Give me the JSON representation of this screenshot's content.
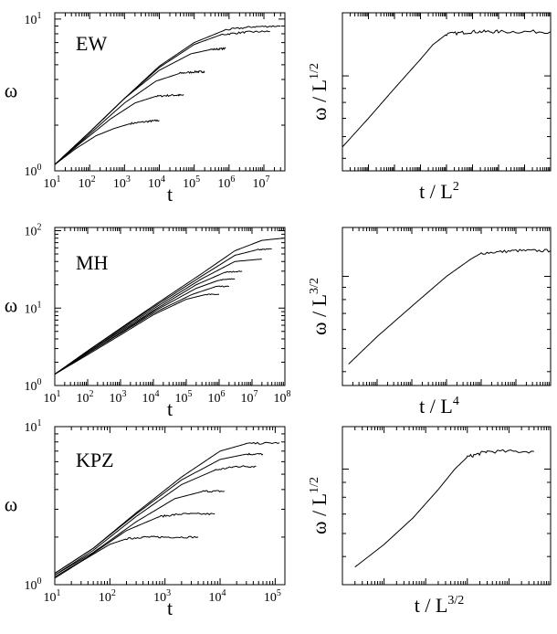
{
  "figure": {
    "rows": 3,
    "cols": 2
  },
  "chart_data": [
    {
      "id": "ew-left",
      "type": "line",
      "panel_label": "EW",
      "xlabel": "t",
      "ylabel": "ω",
      "xscale": "log",
      "yscale": "log",
      "xlim": [
        10,
        40000000
      ],
      "ylim": [
        1,
        11
      ],
      "xticks": [
        {
          "v": 10,
          "b": "10",
          "e": "1"
        },
        {
          "v": 100,
          "b": "10",
          "e": "2"
        },
        {
          "v": 1000,
          "b": "10",
          "e": "3"
        },
        {
          "v": 10000,
          "b": "10",
          "e": "4"
        },
        {
          "v": 100000,
          "b": "10",
          "e": "5"
        },
        {
          "v": 1000000,
          "b": "10",
          "e": "6"
        },
        {
          "v": 10000000,
          "b": "10",
          "e": "7"
        }
      ],
      "yticks": [
        {
          "v": 1,
          "b": "10",
          "e": "0"
        },
        {
          "v": 10,
          "b": "10",
          "e": "1"
        }
      ],
      "series": [
        {
          "x": [
            10,
            40,
            150,
            500,
            1500,
            5000,
            10000
          ],
          "y": [
            1.1,
            1.4,
            1.7,
            1.9,
            2.05,
            2.12,
            2.15
          ]
        },
        {
          "x": [
            10,
            60,
            400,
            2000,
            8000,
            25000,
            50000
          ],
          "y": [
            1.1,
            1.55,
            2.2,
            2.8,
            3.1,
            3.15,
            3.15
          ]
        },
        {
          "x": [
            10,
            100,
            1000,
            8000,
            40000,
            120000,
            200000
          ],
          "y": [
            1.1,
            1.75,
            2.8,
            3.9,
            4.4,
            4.5,
            4.5
          ]
        },
        {
          "x": [
            10,
            100,
            1000,
            10000,
            80000,
            300000,
            800000
          ],
          "y": [
            1.1,
            1.8,
            3.0,
            4.6,
            5.9,
            6.3,
            6.4
          ]
        },
        {
          "x": [
            10,
            100,
            1000,
            10000,
            100000,
            600000,
            3000000,
            15000000
          ],
          "y": [
            1.1,
            1.8,
            3.0,
            4.8,
            6.8,
            7.9,
            8.2,
            8.3
          ]
        },
        {
          "x": [
            10,
            100,
            1000,
            10000,
            100000,
            800000,
            5000000,
            30000000
          ],
          "y": [
            1.1,
            1.8,
            3.0,
            4.9,
            7.0,
            8.5,
            8.9,
            9.0
          ]
        }
      ]
    },
    {
      "id": "ew-right",
      "type": "line",
      "xlabel": {
        "base": "t / L",
        "sup": "2"
      },
      "ylabel": {
        "base": "ω / L",
        "sup": "1/2"
      },
      "xscale": "log",
      "yscale": "log",
      "xlim": [
        0.0001,
        10000
      ],
      "ylim": [
        0.45,
        1.7
      ],
      "series": [
        {
          "x": [
            0.0001,
            0.001,
            0.01,
            0.1,
            0.3,
            1,
            10,
            100,
            10000
          ],
          "y": [
            0.55,
            0.7,
            0.9,
            1.15,
            1.3,
            1.42,
            1.45,
            1.45,
            1.45
          ]
        }
      ]
    },
    {
      "id": "mh-left",
      "type": "line",
      "panel_label": "MH",
      "xlabel": "t",
      "ylabel": "ω",
      "xscale": "log",
      "yscale": "log",
      "xlim": [
        10,
        100000000
      ],
      "ylim": [
        1,
        110
      ],
      "xticks": [
        {
          "v": 10,
          "b": "10",
          "e": "1"
        },
        {
          "v": 100,
          "b": "10",
          "e": "2"
        },
        {
          "v": 1000,
          "b": "10",
          "e": "3"
        },
        {
          "v": 10000,
          "b": "10",
          "e": "4"
        },
        {
          "v": 100000,
          "b": "10",
          "e": "5"
        },
        {
          "v": 1000000,
          "b": "10",
          "e": "6"
        },
        {
          "v": 10000000,
          "b": "10",
          "e": "7"
        },
        {
          "v": 100000000,
          "b": "10",
          "e": "8"
        }
      ],
      "yticks": [
        {
          "v": 1,
          "b": "10",
          "e": "0"
        },
        {
          "v": 10,
          "b": "10",
          "e": "1"
        },
        {
          "v": 100,
          "b": "10",
          "e": "2"
        }
      ],
      "series": [
        {
          "x": [
            10,
            100,
            1000,
            10000,
            100000,
            400000,
            1000000
          ],
          "y": [
            1.4,
            2.5,
            4.5,
            8.2,
            13,
            15,
            15
          ]
        },
        {
          "x": [
            10,
            100,
            1000,
            10000,
            150000,
            800000,
            2000000
          ],
          "y": [
            1.4,
            2.6,
            4.7,
            8.6,
            15,
            19,
            19
          ]
        },
        {
          "x": [
            10,
            100,
            1000,
            10000,
            200000,
            1000000,
            3000000
          ],
          "y": [
            1.4,
            2.6,
            4.8,
            9.0,
            18,
            23,
            24
          ]
        },
        {
          "x": [
            10,
            100,
            1000,
            10000,
            200000,
            1500000,
            5000000
          ],
          "y": [
            1.4,
            2.7,
            5.0,
            9.3,
            20,
            29,
            30
          ]
        },
        {
          "x": [
            10,
            100,
            1000,
            10000,
            300000,
            3000000,
            20000000
          ],
          "y": [
            1.4,
            2.7,
            5.2,
            9.8,
            24,
            40,
            43
          ]
        },
        {
          "x": [
            10,
            100,
            1000,
            10000,
            300000,
            3000000,
            15000000,
            40000000
          ],
          "y": [
            1.4,
            2.8,
            5.4,
            10.3,
            26,
            48,
            57,
            58
          ]
        },
        {
          "x": [
            10,
            100,
            1000,
            10000,
            300000,
            3000000,
            20000000,
            90000000
          ],
          "y": [
            1.4,
            2.8,
            5.5,
            10.7,
            28,
            55,
            75,
            80
          ]
        }
      ]
    },
    {
      "id": "mh-right",
      "type": "line",
      "xlabel": {
        "base": "t / L",
        "sup": "4"
      },
      "ylabel": {
        "base": "ω / L",
        "sup": "3/2"
      },
      "xscale": "log",
      "yscale": "log",
      "xlim": [
        0.0001,
        100
      ],
      "ylim": [
        0.35,
        1.6
      ],
      "series": [
        {
          "x": [
            0.00015,
            0.001,
            0.01,
            0.1,
            0.5,
            1,
            10,
            100
          ],
          "y": [
            0.43,
            0.56,
            0.75,
            1.0,
            1.18,
            1.25,
            1.28,
            1.28
          ]
        }
      ]
    },
    {
      "id": "kpz-left",
      "type": "line",
      "panel_label": "KPZ",
      "xlabel": "t",
      "ylabel": "ω",
      "xscale": "log",
      "yscale": "log",
      "xlim": [
        10,
        150000
      ],
      "ylim": [
        1,
        10
      ],
      "xticks": [
        {
          "v": 10,
          "b": "10",
          "e": "1"
        },
        {
          "v": 100,
          "b": "10",
          "e": "2"
        },
        {
          "v": 1000,
          "b": "10",
          "e": "3"
        },
        {
          "v": 10000,
          "b": "10",
          "e": "4"
        },
        {
          "v": 100000,
          "b": "10",
          "e": "5"
        }
      ],
      "yticks": [
        {
          "v": 1,
          "b": "10",
          "e": "0"
        },
        {
          "v": 10,
          "b": "10",
          "e": "1"
        }
      ],
      "series": [
        {
          "x": [
            10,
            30,
            100,
            200,
            400,
            1000,
            4000
          ],
          "y": [
            1.1,
            1.4,
            1.8,
            1.95,
            2.0,
            2.0,
            2.0
          ]
        },
        {
          "x": [
            10,
            40,
            200,
            800,
            2000,
            8000
          ],
          "y": [
            1.12,
            1.5,
            2.2,
            2.7,
            2.8,
            2.8
          ]
        },
        {
          "x": [
            10,
            50,
            300,
            1500,
            5000,
            12000
          ],
          "y": [
            1.15,
            1.6,
            2.5,
            3.5,
            3.9,
            3.9
          ]
        },
        {
          "x": [
            10,
            50,
            300,
            2000,
            8000,
            20000,
            45000
          ],
          "y": [
            1.15,
            1.65,
            2.7,
            4.3,
            5.3,
            5.6,
            5.6
          ]
        },
        {
          "x": [
            10,
            50,
            300,
            2000,
            10000,
            30000,
            60000
          ],
          "y": [
            1.18,
            1.7,
            2.8,
            4.6,
            6.2,
            6.7,
            6.7
          ]
        },
        {
          "x": [
            10,
            50,
            300,
            2000,
            10000,
            30000,
            120000
          ],
          "y": [
            1.18,
            1.7,
            2.85,
            4.8,
            7.0,
            7.8,
            7.9
          ]
        }
      ]
    },
    {
      "id": "kpz-right",
      "type": "line",
      "xlabel": {
        "base": "t / L",
        "sup": "3/2"
      },
      "ylabel": {
        "base": "ω / L",
        "sup": "1/2"
      },
      "xscale": "log",
      "yscale": "log",
      "xlim": [
        0.001,
        100
      ],
      "ylim": [
        0.4,
        1.4
      ],
      "series": [
        {
          "x": [
            0.002,
            0.01,
            0.05,
            0.2,
            0.5,
            1,
            3,
            40
          ],
          "y": [
            0.46,
            0.55,
            0.68,
            0.85,
            1.0,
            1.1,
            1.15,
            1.15
          ]
        }
      ]
    }
  ]
}
